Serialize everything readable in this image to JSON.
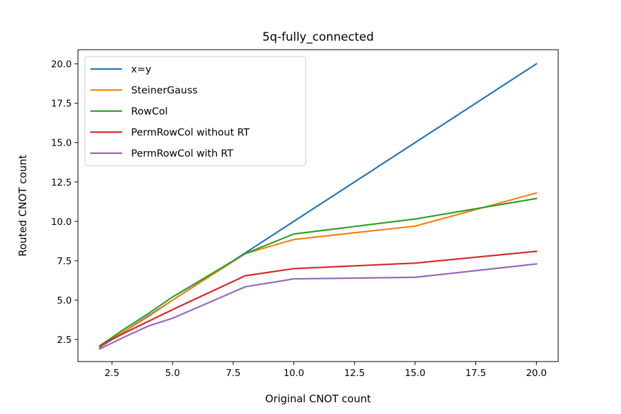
{
  "chart_data": {
    "type": "line",
    "title": "5q-fully_connected",
    "xlabel": "Original CNOT count",
    "ylabel": "Routed CNOT count",
    "xlim": [
      1.1,
      20.9
    ],
    "ylim": [
      1.1,
      20.9
    ],
    "xticks": [
      2.5,
      5.0,
      7.5,
      10.0,
      12.5,
      15.0,
      17.5,
      20.0
    ],
    "yticks": [
      2.5,
      5.0,
      7.5,
      10.0,
      12.5,
      15.0,
      17.5,
      20.0
    ],
    "xtick_labels": [
      "2.5",
      "5.0",
      "7.5",
      "10.0",
      "12.5",
      "15.0",
      "17.5",
      "20.0"
    ],
    "ytick_labels": [
      "2.5",
      "5.0",
      "7.5",
      "10.0",
      "12.5",
      "15.0",
      "17.5",
      "20.0"
    ],
    "grid": false,
    "legend_position": "top-left",
    "series": [
      {
        "name": "x=y",
        "color": "#1f77b4",
        "x": [
          2,
          3,
          4,
          5,
          8,
          10,
          15,
          20
        ],
        "y": [
          2,
          3,
          4,
          5,
          8,
          10,
          15,
          20
        ]
      },
      {
        "name": "SteinerGauss",
        "color": "#ff7f0e",
        "x": [
          2,
          3,
          4,
          5,
          8,
          10,
          15,
          20
        ],
        "y": [
          2.05,
          3.0,
          3.95,
          5.0,
          7.95,
          8.85,
          9.7,
          11.8
        ]
      },
      {
        "name": "RowCol",
        "color": "#2ca02c",
        "x": [
          2,
          3,
          4,
          5,
          8,
          10,
          15,
          20
        ],
        "y": [
          2.1,
          3.15,
          4.15,
          5.2,
          7.95,
          9.2,
          10.15,
          11.45
        ]
      },
      {
        "name": "PermRowCol without RT",
        "color": "#d62728",
        "x": [
          2,
          3,
          4,
          5,
          8,
          10,
          15,
          20
        ],
        "y": [
          2.1,
          2.9,
          3.65,
          4.4,
          6.55,
          7.0,
          7.35,
          8.1
        ]
      },
      {
        "name": "PermRowCol with RT",
        "color": "#9467bd",
        "x": [
          2,
          3,
          4,
          5,
          8,
          10,
          15,
          20
        ],
        "y": [
          1.9,
          2.65,
          3.35,
          3.85,
          5.85,
          6.35,
          6.45,
          7.3
        ]
      }
    ]
  }
}
